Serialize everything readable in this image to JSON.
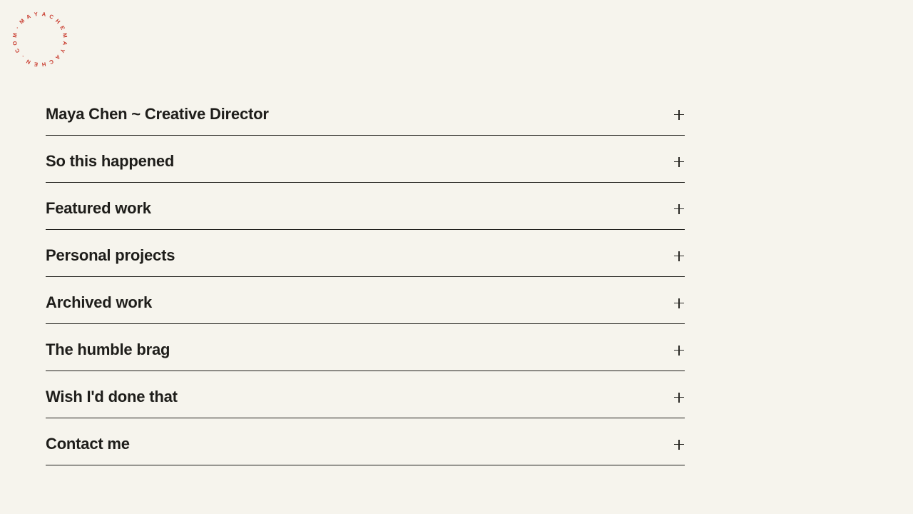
{
  "colors": {
    "background": "#f6f4ed",
    "text": "#1e1d1a",
    "divider": "#1e1d1a",
    "accent_red": "#c8392c"
  },
  "logo": {
    "circular_text": "MAYACHEMAYACHEN.COM·"
  },
  "accordion": {
    "toggle_glyph": "+",
    "items": [
      {
        "label": "Maya Chen ~ Creative Director"
      },
      {
        "label": "So this happened"
      },
      {
        "label": "Featured work"
      },
      {
        "label": "Personal projects"
      },
      {
        "label": "Archived work"
      },
      {
        "label": "The humble brag"
      },
      {
        "label": "Wish I'd done that"
      },
      {
        "label": "Contact me"
      }
    ]
  }
}
